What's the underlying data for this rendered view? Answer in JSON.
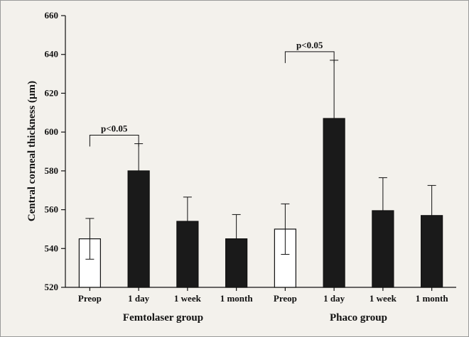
{
  "chart_data": {
    "type": "bar",
    "ylabel": "Central corneal thickness (µm)",
    "ylim": [
      520,
      660
    ],
    "yticks": [
      520,
      540,
      560,
      580,
      600,
      620,
      640,
      660
    ],
    "grid": false,
    "groups": [
      {
        "name": "Femtolaser group",
        "bars": [
          {
            "label": "Preop",
            "value": 545,
            "error": 10.5,
            "fill": "open"
          },
          {
            "label": "1 day",
            "value": 580,
            "error": 14,
            "fill": "solid"
          },
          {
            "label": "1 week",
            "value": 554,
            "error": 12.5,
            "fill": "solid"
          },
          {
            "label": "1 month",
            "value": 545,
            "error": 12.5,
            "fill": "solid"
          }
        ],
        "annotation": {
          "text": "p<0.05",
          "from": "Preop",
          "to": "1 day"
        }
      },
      {
        "name": "Phaco group",
        "bars": [
          {
            "label": "Preop",
            "value": 550,
            "error": 13,
            "fill": "open"
          },
          {
            "label": "1 day",
            "value": 607,
            "error": 30,
            "fill": "solid"
          },
          {
            "label": "1 week",
            "value": 559.5,
            "error": 17,
            "fill": "solid"
          },
          {
            "label": "1 month",
            "value": 557,
            "error": 15.5,
            "fill": "solid"
          }
        ],
        "annotation": {
          "text": "p<0.05",
          "from": "Preop",
          "to": "1 day"
        }
      }
    ],
    "colors": {
      "solid": "#1a1a1a",
      "open": "#ffffff",
      "stroke": "#111111"
    }
  }
}
